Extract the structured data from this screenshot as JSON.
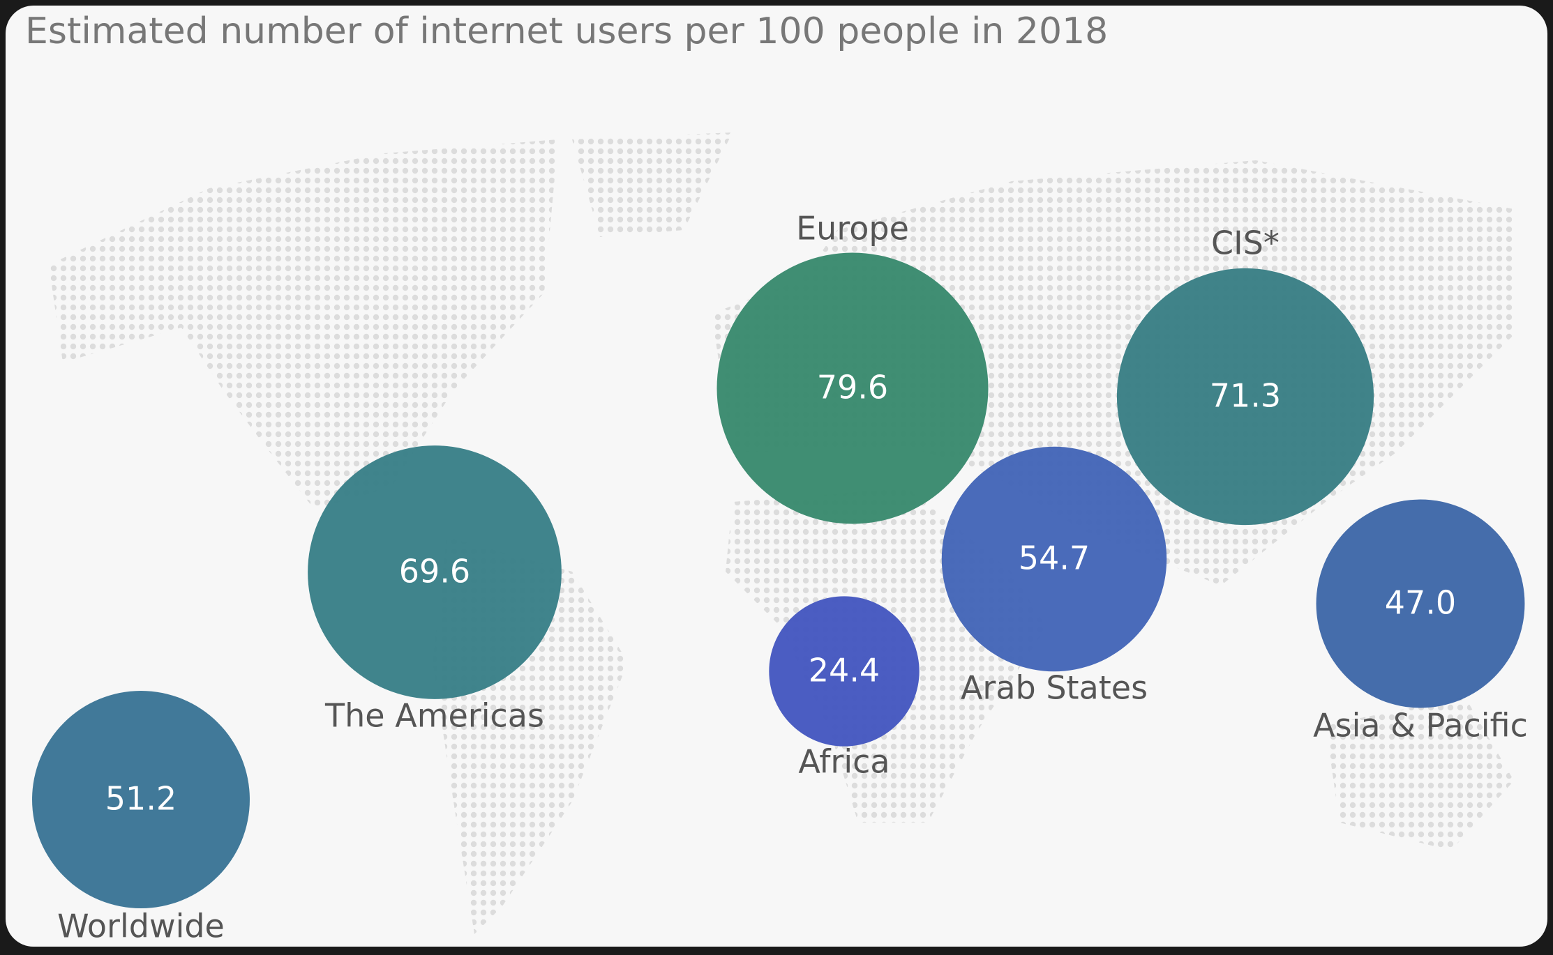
{
  "chart_data": {
    "type": "bubble",
    "title": "Estimated number of internet users per 100 people in 2018",
    "categories": [
      "Worldwide",
      "The Americas",
      "Europe",
      "Africa",
      "Arab States",
      "CIS*",
      "Asia & Pacific"
    ],
    "values": [
      51.2,
      69.6,
      79.6,
      24.4,
      54.7,
      71.3,
      47.0
    ],
    "value_labels": [
      "51.2",
      "69.6",
      "79.6",
      "24.4",
      "54.7",
      "71.3",
      "47.0"
    ],
    "colors": [
      "#3b7596",
      "#3a8088",
      "#3a8a6e",
      "#4558c0",
      "#4466b8",
      "#3a7f85",
      "#3f68a8"
    ]
  }
}
